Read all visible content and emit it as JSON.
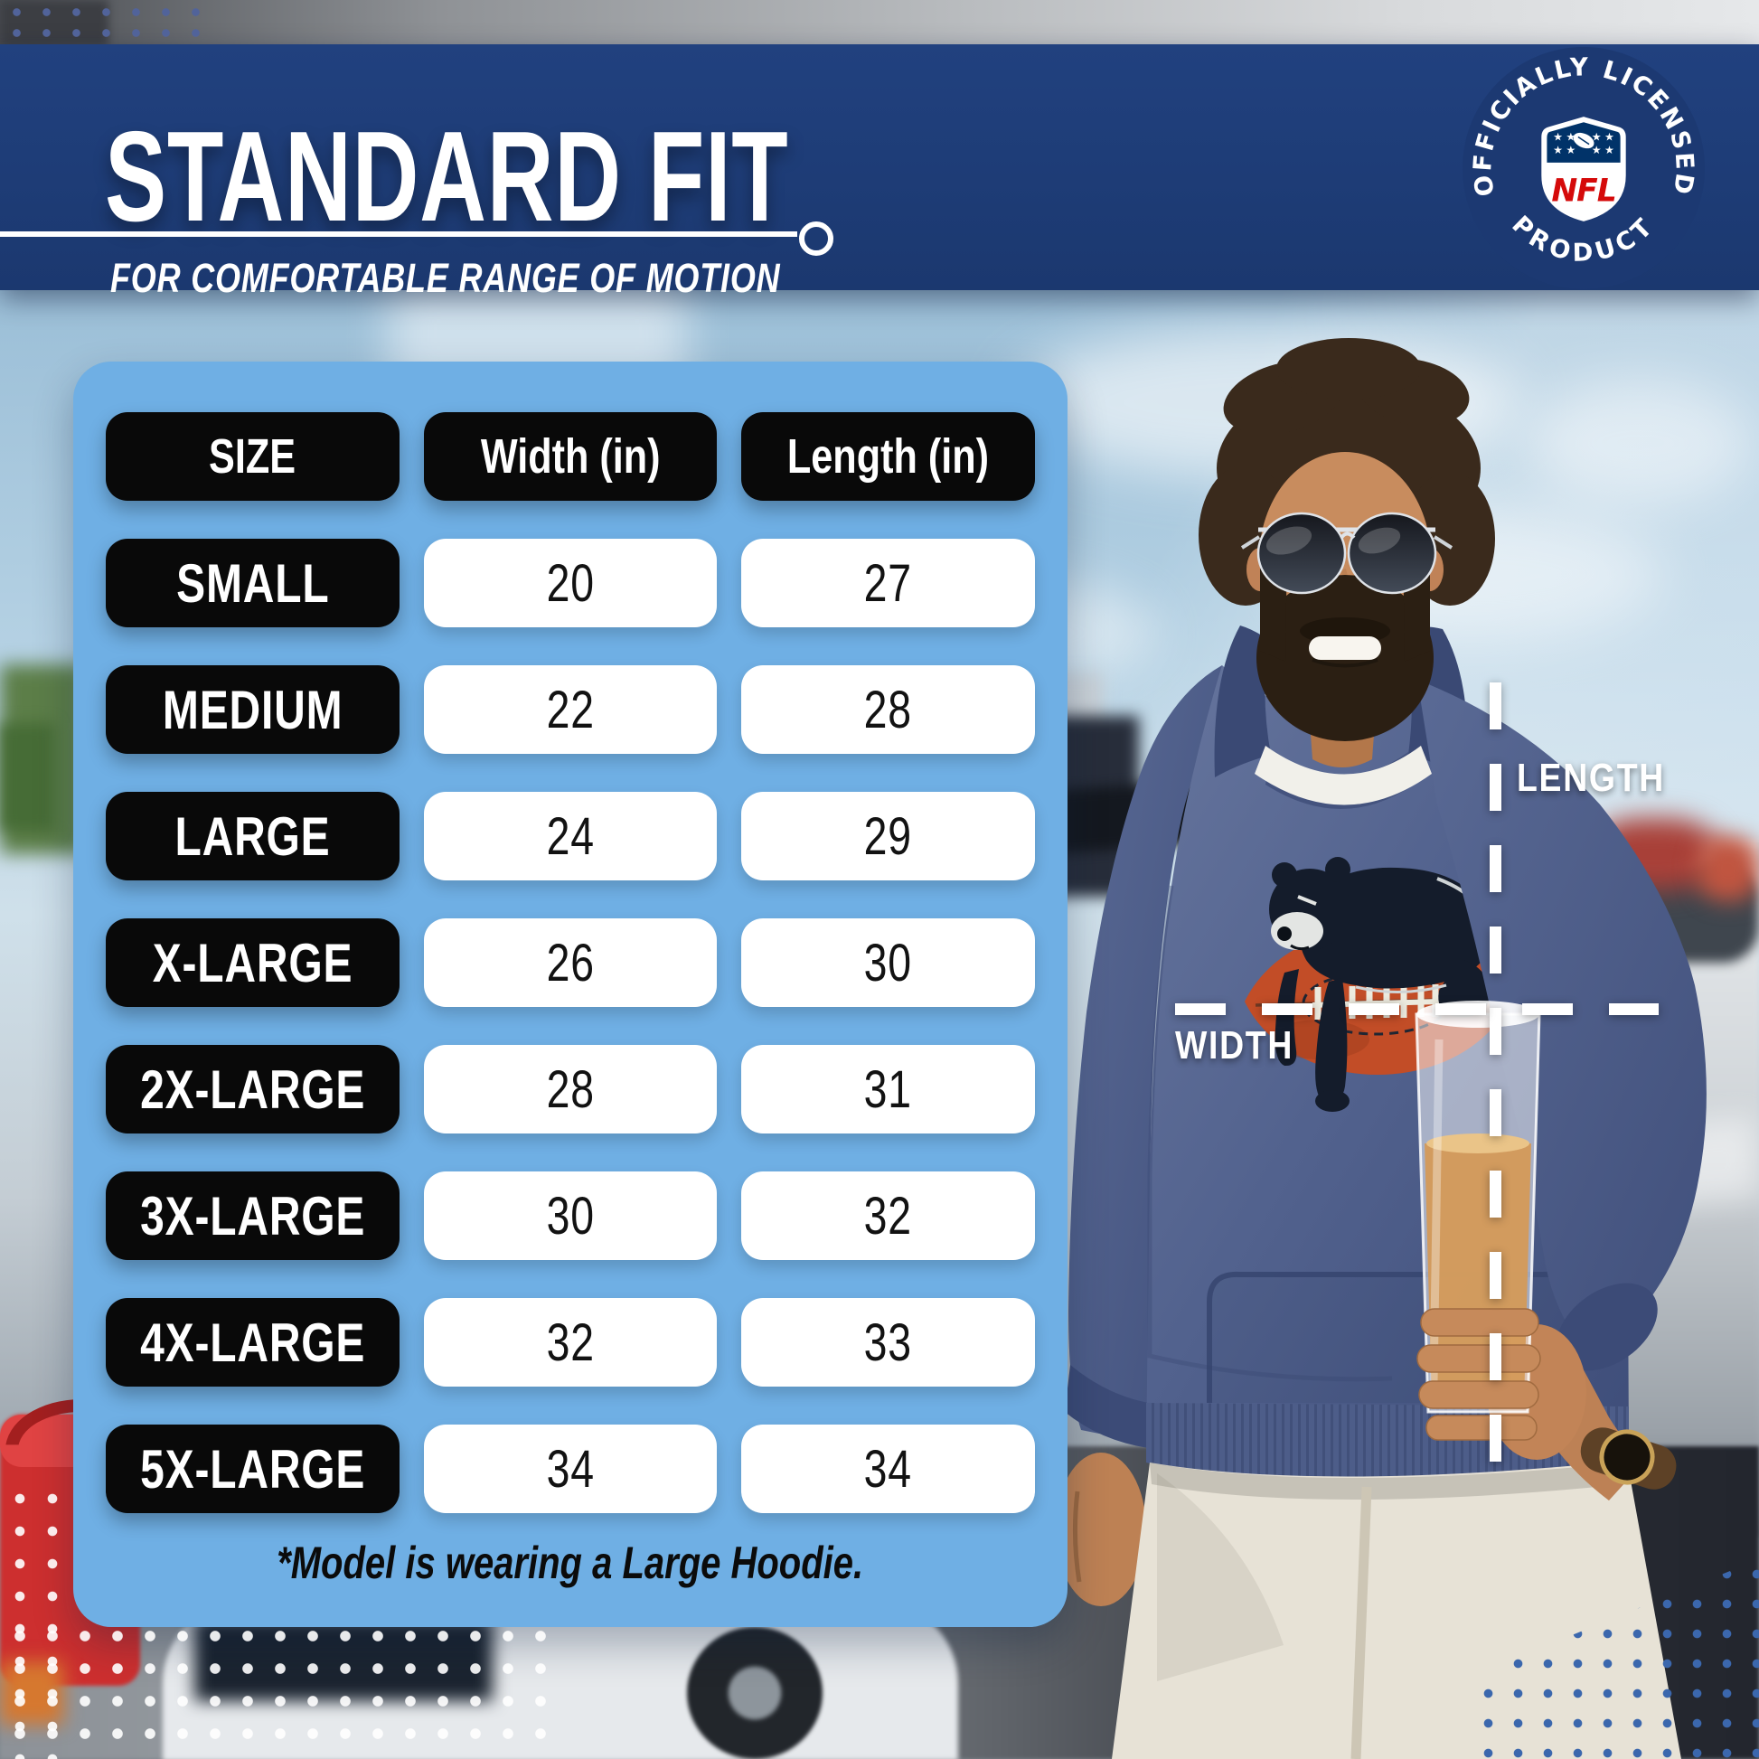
{
  "badge": {
    "arc_top": "OFFICIALLY LICENSED",
    "arc_bottom": "PRODUCT",
    "shield_label": "NFL"
  },
  "overlay": {
    "length_label": "LENGTH",
    "width_label": "WIDTH"
  },
  "chart_data": {
    "type": "table",
    "title": "STANDARD FIT",
    "subtitle": "FOR COMFORTABLE RANGE OF MOTION",
    "columns": [
      "SIZE",
      "Width (in)",
      "Length (in)"
    ],
    "rows": [
      {
        "size": "SMALL",
        "width_in": 20,
        "length_in": 27
      },
      {
        "size": "MEDIUM",
        "width_in": 22,
        "length_in": 28
      },
      {
        "size": "LARGE",
        "width_in": 24,
        "length_in": 29
      },
      {
        "size": "X-LARGE",
        "width_in": 26,
        "length_in": 30
      },
      {
        "size": "2X-LARGE",
        "width_in": 28,
        "length_in": 31
      },
      {
        "size": "3X-LARGE",
        "width_in": 30,
        "length_in": 32
      },
      {
        "size": "4X-LARGE",
        "width_in": 32,
        "length_in": 33
      },
      {
        "size": "5X-LARGE",
        "width_in": 34,
        "length_in": 34
      }
    ],
    "footnote": "*Model is wearing a Large Hoodie."
  },
  "colors": {
    "header_band": "#1c3a74",
    "panel_blue": "#6fafe4",
    "pill_black": "#090909",
    "nfl_red": "#d50a0a",
    "shield_blue": "#013369",
    "hoodie_navy": "#52628e",
    "football_orange": "#c24d27"
  }
}
